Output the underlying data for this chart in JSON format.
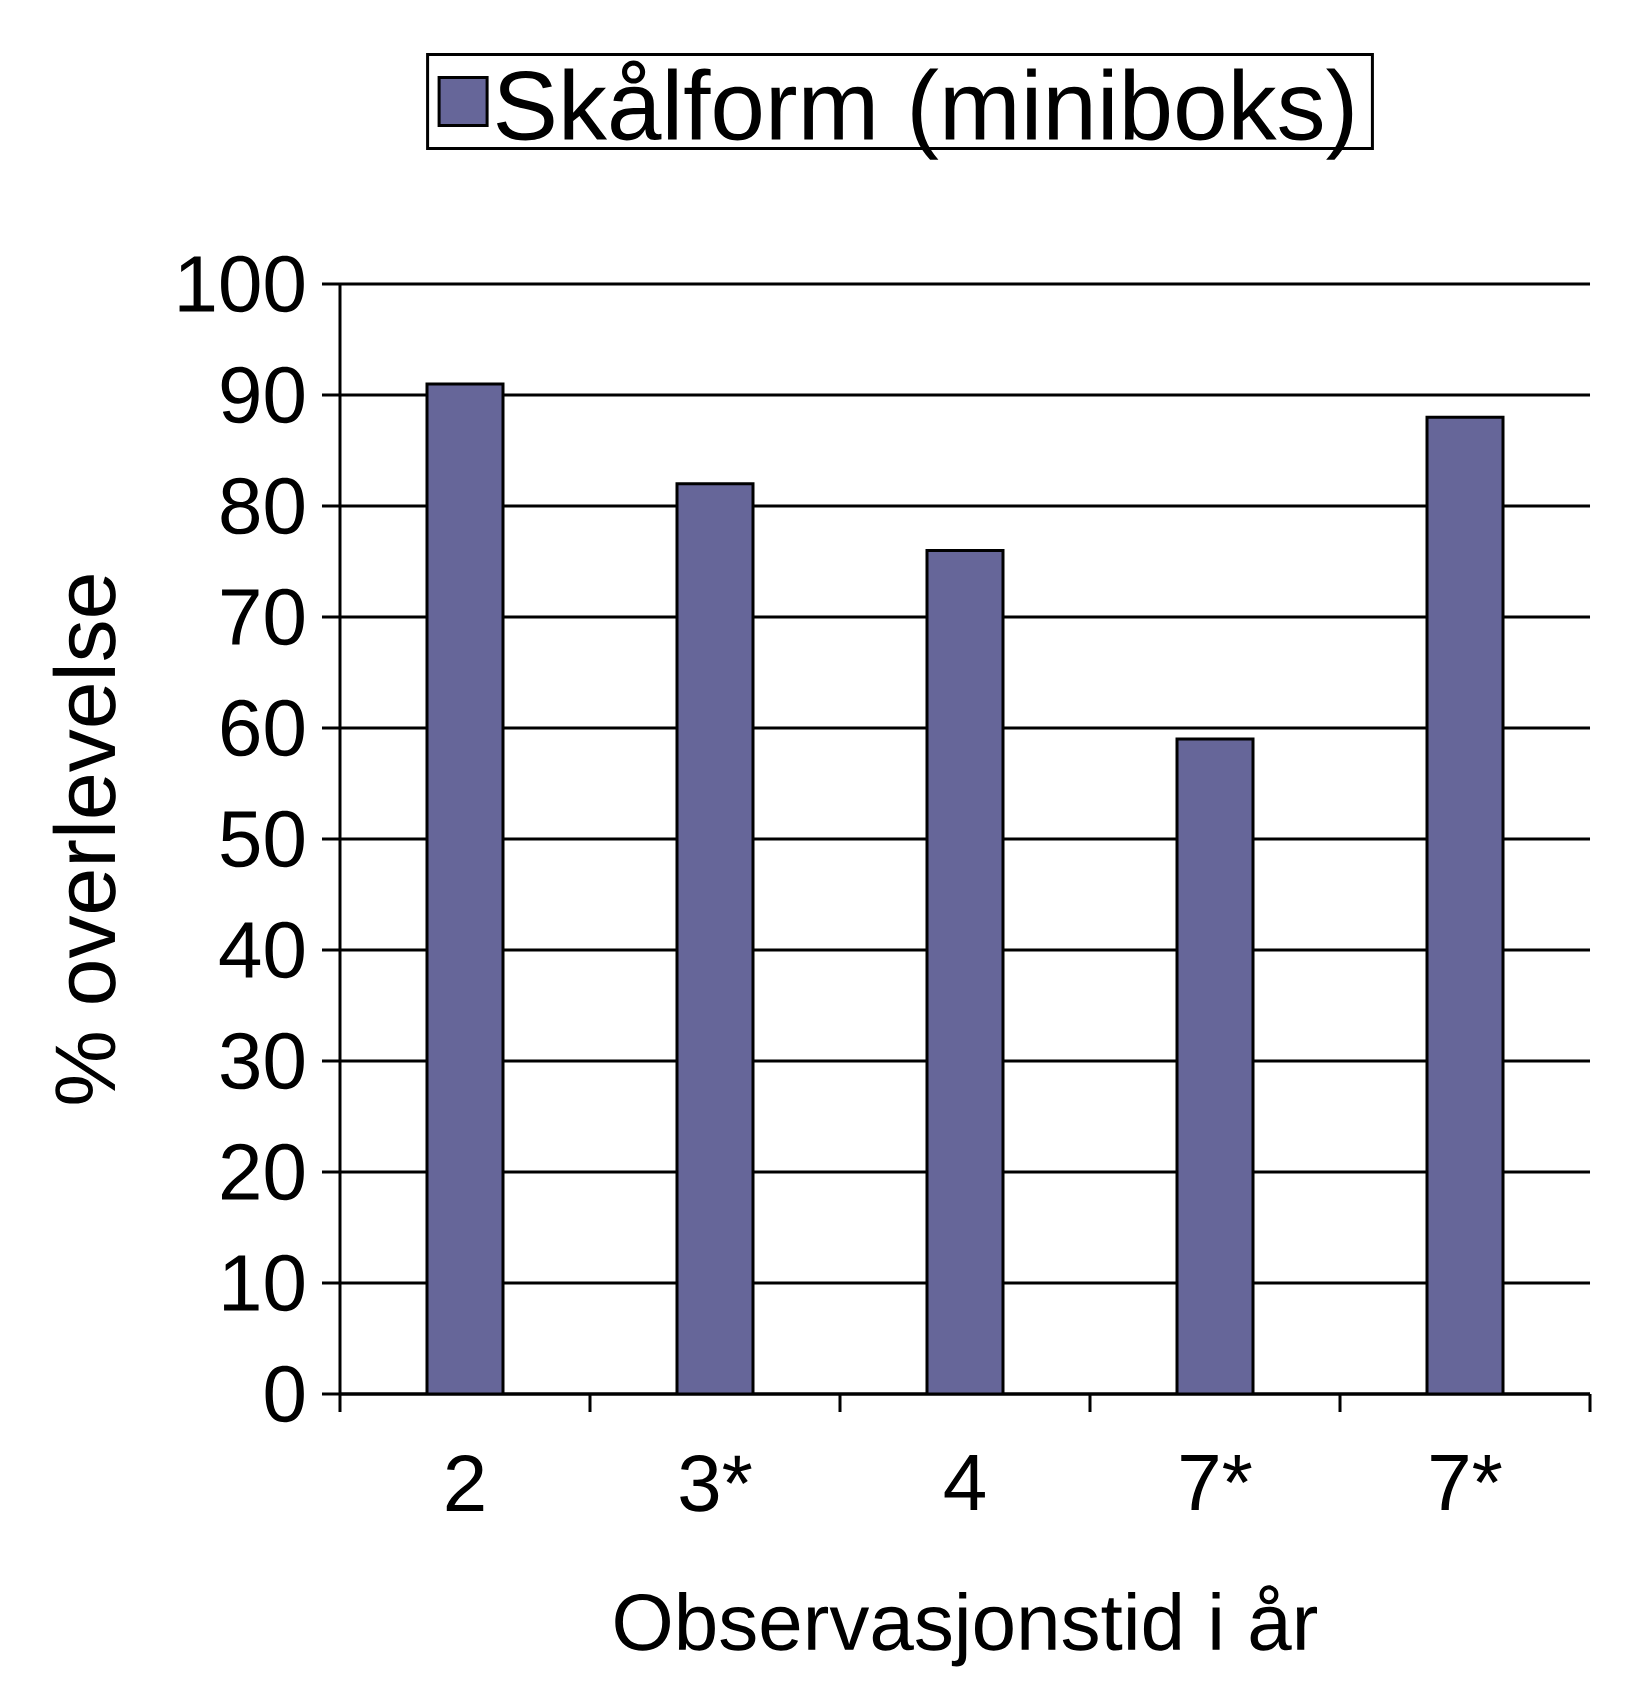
{
  "chart_data": {
    "type": "bar",
    "categories": [
      "2",
      "3*",
      "4",
      "7*",
      "7*"
    ],
    "series": [
      {
        "name": "Skålform (miniboks)",
        "color": "#666699",
        "values": [
          91,
          82,
          76,
          59,
          88
        ]
      }
    ],
    "xlabel": "Observasjonstid i år",
    "ylabel": "% overlevelse",
    "ylim": [
      0,
      100
    ],
    "yticks": [
      0,
      10,
      20,
      30,
      40,
      50,
      60,
      70,
      80,
      90,
      100
    ],
    "grid": "y",
    "legend": "top"
  }
}
